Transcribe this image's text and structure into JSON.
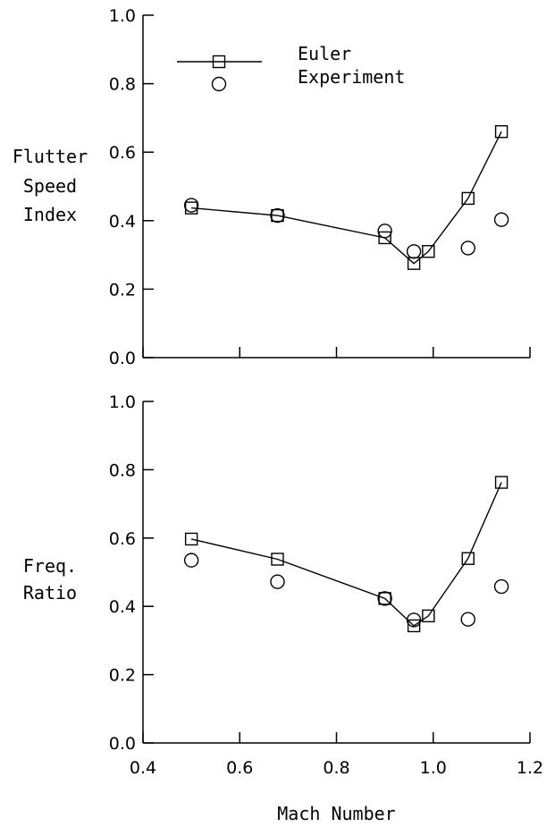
{
  "chart_data": [
    {
      "type": "line",
      "title": "",
      "xlabel": "",
      "ylabel": [
        "Flutter",
        "Speed",
        "Index"
      ],
      "xlim": [
        0.4,
        1.2
      ],
      "ylim": [
        0.0,
        1.0
      ],
      "y_ticks": [
        "0.0",
        "0.2",
        "0.4",
        "0.6",
        "0.8",
        "1.0"
      ],
      "x_tick_labels_shown": false,
      "legend": {
        "placement": "top-left",
        "entries": [
          {
            "name": "Euler",
            "marker": "square",
            "line": true
          },
          {
            "name": "Experiment",
            "marker": "circle",
            "line": false
          }
        ]
      },
      "series": [
        {
          "name": "Euler",
          "marker": "square",
          "connected": true,
          "x": [
            0.5,
            0.678,
            0.9,
            0.96,
            0.99,
            1.072,
            1.141
          ],
          "y": [
            0.437,
            0.415,
            0.35,
            0.275,
            0.31,
            0.465,
            0.66
          ]
        },
        {
          "name": "Experiment",
          "marker": "circle",
          "connected": false,
          "x": [
            0.5,
            0.678,
            0.9,
            0.96,
            1.072,
            1.141
          ],
          "y": [
            0.445,
            0.415,
            0.37,
            0.31,
            0.32,
            0.403
          ]
        }
      ]
    },
    {
      "type": "line",
      "title": "",
      "xlabel": "Mach Number",
      "ylabel": [
        "Freq.",
        "Ratio"
      ],
      "xlim": [
        0.4,
        1.2
      ],
      "ylim": [
        0.0,
        1.0
      ],
      "y_ticks": [
        "0.0",
        "0.2",
        "0.4",
        "0.6",
        "0.8",
        "1.0"
      ],
      "x_ticks": [
        "0.4",
        "0.6",
        "0.8",
        "1.0",
        "1.2"
      ],
      "series": [
        {
          "name": "Euler",
          "marker": "square",
          "connected": true,
          "x": [
            0.5,
            0.678,
            0.9,
            0.96,
            0.99,
            1.072,
            1.141
          ],
          "y": [
            0.597,
            0.538,
            0.423,
            0.343,
            0.372,
            0.54,
            0.763
          ]
        },
        {
          "name": "Experiment",
          "marker": "circle",
          "connected": false,
          "x": [
            0.5,
            0.678,
            0.9,
            0.96,
            1.072,
            1.141
          ],
          "y": [
            0.535,
            0.472,
            0.423,
            0.36,
            0.362,
            0.458
          ]
        }
      ]
    }
  ]
}
